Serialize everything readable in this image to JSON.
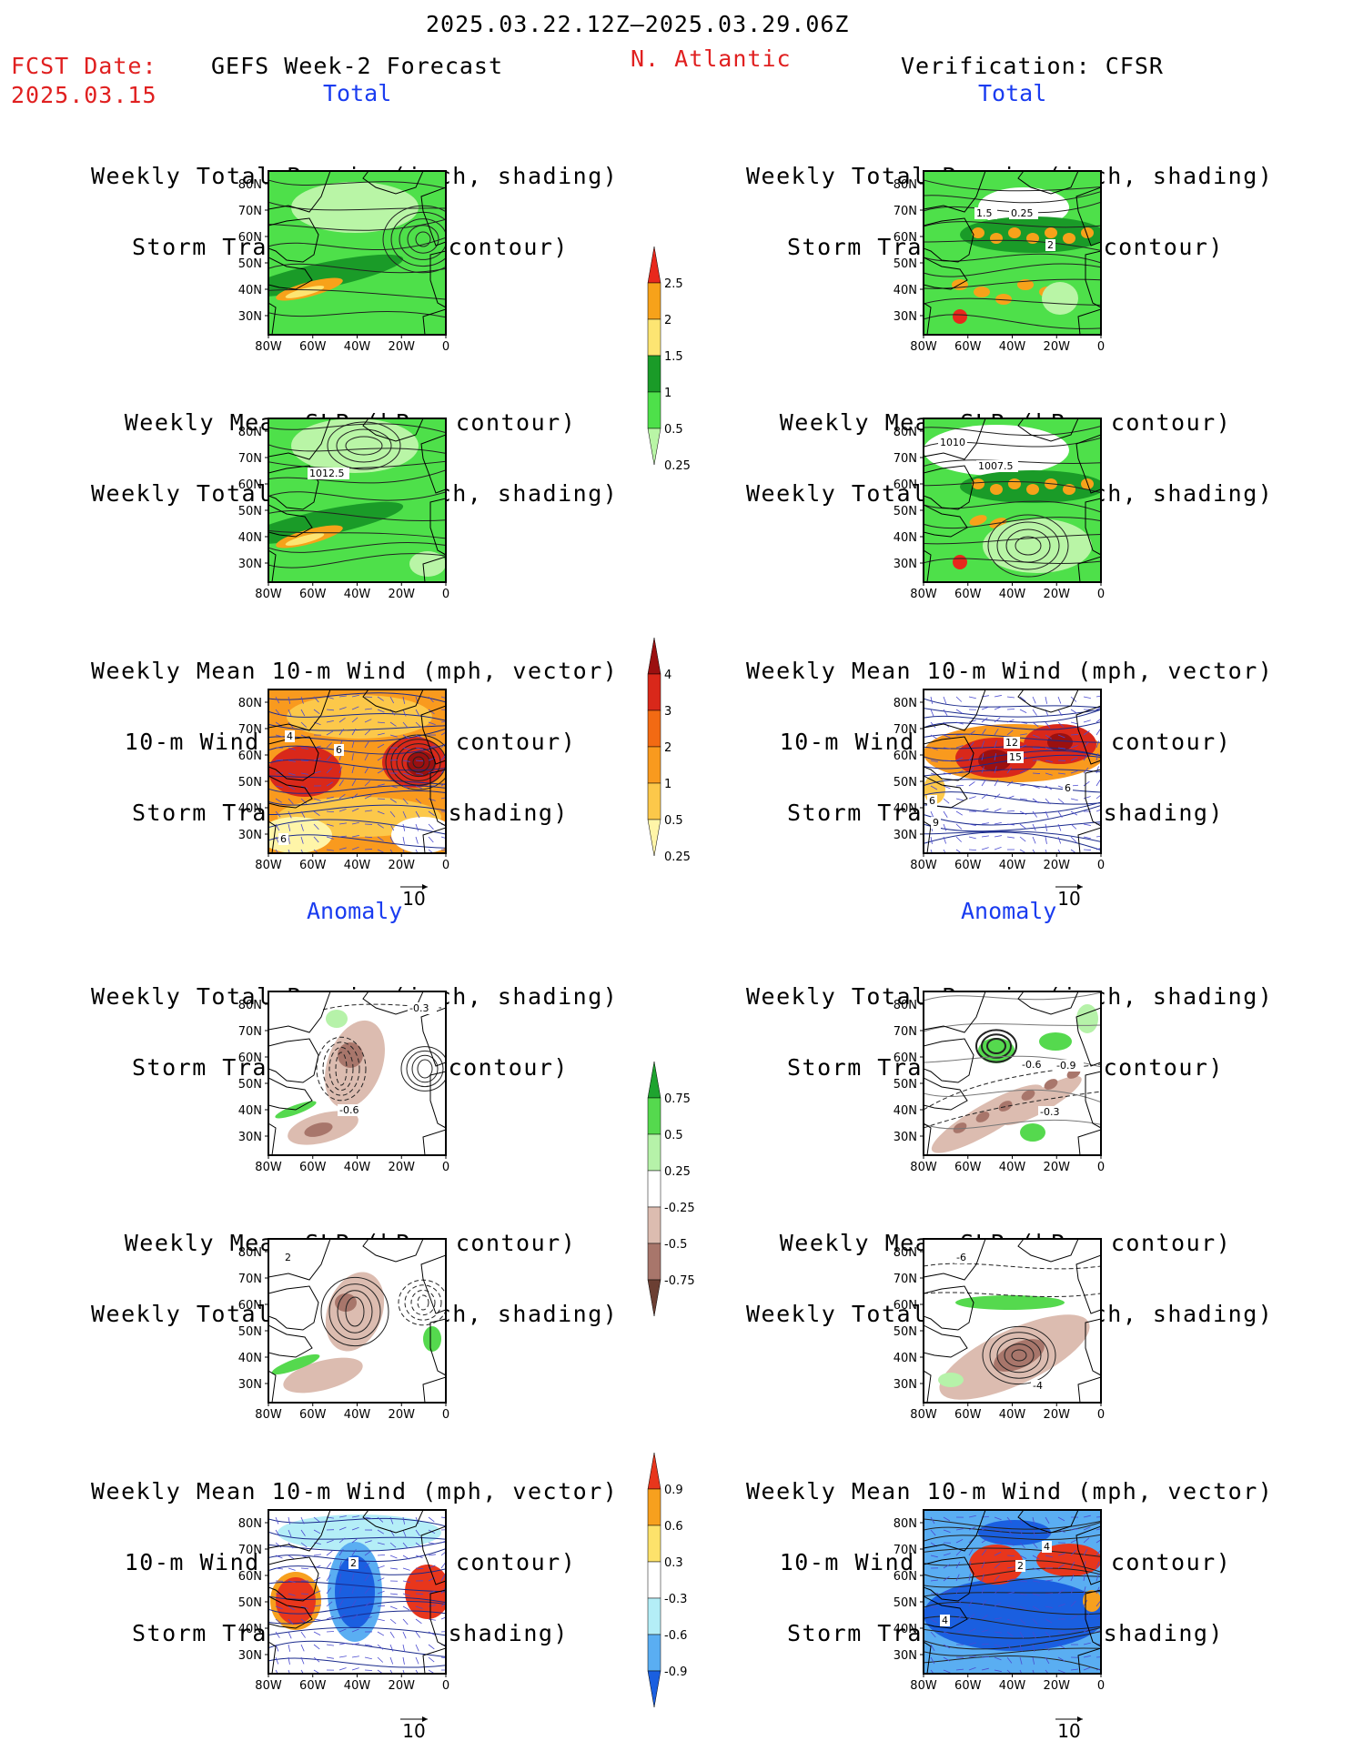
{
  "header": {
    "date_range": "2025.03.22.12Z–2025.03.29.06Z",
    "fcst_label": "FCST Date:",
    "fcst_date": "2025.03.15",
    "left_title": "GEFS Week-2 Forecast",
    "region": "N. Atlantic",
    "right_title": "Verification: CFSR"
  },
  "sections": {
    "total": "Total",
    "anomaly": "Anomaly"
  },
  "titles": {
    "precip_track": [
      "Weekly Total Precip (inch, shading)",
      "Storm Track Density (contour)"
    ],
    "slp_precip": [
      "Weekly Mean SLP (hPa, contour)",
      "Weekly Total Precip (inch, shading)"
    ],
    "wind": [
      "Weekly Mean 10-m Wind (mph, vector)",
      "10-m Wind Speed (mph, contour)",
      "Storm Track Density (shading)"
    ]
  },
  "axes": {
    "lat_ticks": [
      "80N",
      "70N",
      "60N",
      "50N",
      "40N",
      "30N"
    ],
    "lon_ticks": [
      "80W",
      "60W",
      "40W",
      "20W",
      "0"
    ]
  },
  "vector_reference": "10",
  "colorbars": {
    "precip_total": {
      "labels": [
        "2.5",
        "2",
        "1.5",
        "1",
        "0.5",
        "0.25"
      ],
      "colors": [
        "#e8281c",
        "#f7a21a",
        "#fde572",
        "#1a9b28",
        "#4ee04a",
        "#b9f5a6"
      ]
    },
    "track_total": {
      "labels": [
        "4",
        "3",
        "2",
        "1",
        "0.5",
        "0.25"
      ],
      "colors": [
        "#9b1010",
        "#d9281a",
        "#f26a13",
        "#f99a1e",
        "#fcc84a",
        "#fff5a8"
      ]
    },
    "precip_anom": {
      "labels": [
        "0.75",
        "0.5",
        "0.25",
        "-0.25",
        "-0.5",
        "-0.75"
      ],
      "colors": [
        "#1ea32f",
        "#55d94e",
        "#b6f2a9",
        "#ffffff",
        "#dcbcb0",
        "#a8766b",
        "#6b3f33"
      ]
    },
    "wind_anom": {
      "labels": [
        "0.9",
        "0.6",
        "0.3",
        "-0.3",
        "-0.6",
        "-0.9"
      ],
      "colors": [
        "#e8361c",
        "#f7a01e",
        "#fde26b",
        "#ffffff",
        "#b4eef7",
        "#5aaef2",
        "#1a5fe0"
      ]
    }
  },
  "panel_labels": {
    "p1_left": [],
    "p1_right": [
      "1.5",
      "0.25",
      "2"
    ],
    "p2_left": [
      "1012.5"
    ],
    "p2_right": [
      "1010",
      "1007.5"
    ],
    "p3_left": [
      "4",
      "6",
      "6"
    ],
    "p3_right": [
      "12",
      "15",
      "6",
      "6",
      "9"
    ],
    "p4_left": [
      "-0.3",
      "-0.6"
    ],
    "p4_right": [
      "-0.6",
      "-0.9",
      "-0.3"
    ],
    "p5_left": [
      "2"
    ],
    "p5_right": [
      "-6",
      "-4"
    ],
    "p6_left": [
      "2"
    ],
    "p6_right": [
      "4",
      "2",
      "4"
    ]
  }
}
